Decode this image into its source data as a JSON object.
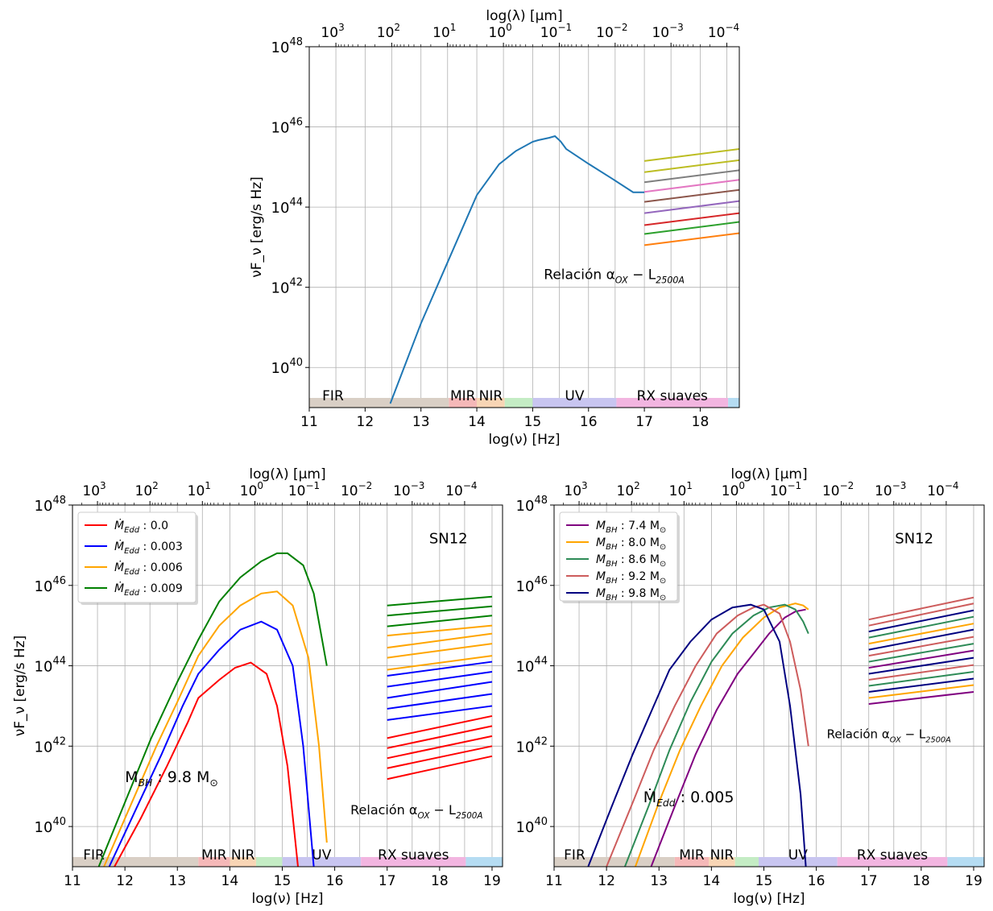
{
  "figure": {
    "background": "#ffffff"
  },
  "chart_data": [
    {
      "id": "top",
      "type": "line",
      "title": "",
      "xlabel": "log(ν) [Hz]",
      "ylabel": "νF_ν [erg/s Hz]",
      "top_xlabel": "log(λ) [μm]",
      "xlim": [
        11,
        18.7
      ],
      "ylim_log10": [
        39,
        48
      ],
      "xticks": [
        11,
        12,
        13,
        14,
        15,
        16,
        17,
        18
      ],
      "yticks_log10": [
        40,
        42,
        44,
        46,
        48
      ],
      "top_ticks_log_um": [
        3,
        2,
        1,
        0,
        -1,
        -2,
        -3,
        -4
      ],
      "grid": true,
      "bands": [
        {
          "name": "FIR",
          "from": 11.0,
          "to": 13.5,
          "color": "#d9cfc5",
          "label_color": "#555555"
        },
        {
          "name": "MIR",
          "from": 13.5,
          "to": 14.0,
          "color": "#f5b8b8",
          "label_color": "#e02424"
        },
        {
          "name": "NIR",
          "from": 14.0,
          "to": 14.5,
          "color": "#f8d5b5",
          "label_color": "#f07f1c"
        },
        {
          "name": "",
          "from": 14.5,
          "to": 15.0,
          "color": "#c4ecc4",
          "label_color": "#000000"
        },
        {
          "name": "UV",
          "from": 15.0,
          "to": 16.5,
          "color": "#c8c5f0",
          "label_color": "#7b68ee"
        },
        {
          "name": "RX suaves",
          "from": 16.5,
          "to": 18.5,
          "color": "#f2b5e0",
          "label_color": "#c242b0"
        },
        {
          "name": "",
          "from": 18.5,
          "to": 19.3,
          "color": "#b5dcf2",
          "label_color": "#000000"
        }
      ],
      "annotations": [
        {
          "text": "Relación α",
          "sub": "OX",
          "text2": " − L",
          "sub2": "2500A",
          "x": 15.2,
          "y_log": 42.2,
          "size": 17
        }
      ],
      "series": [
        {
          "color": "#1f77b4",
          "x": [
            12.45,
            13.0,
            13.5,
            14.0,
            14.4,
            14.7,
            15.0,
            15.1,
            15.2,
            15.3,
            15.4,
            15.5,
            15.6,
            16.0,
            16.4,
            16.8,
            17.0
          ],
          "y_log": [
            39.1,
            41.1,
            42.7,
            44.3,
            45.07,
            45.4,
            45.63,
            45.67,
            45.7,
            45.73,
            45.77,
            45.64,
            45.45,
            45.08,
            44.73,
            44.37,
            44.37
          ]
        }
      ],
      "xray_lines": {
        "x0": 17.0,
        "x1": 18.7,
        "y0_log": [
          43.05,
          43.33,
          43.55,
          43.85,
          44.13,
          44.38,
          44.62,
          44.87,
          45.15
        ],
        "y1_log": [
          43.35,
          43.63,
          43.85,
          44.15,
          44.43,
          44.68,
          44.92,
          45.17,
          45.45
        ],
        "colors": [
          "#ff7f0e",
          "#2ca02c",
          "#d62728",
          "#9467bd",
          "#8c564b",
          "#e377c2",
          "#7f7f7f",
          "#bcbd22",
          "#bcbd22"
        ]
      }
    },
    {
      "id": "bottom-left",
      "type": "line",
      "title": "",
      "xlabel": "log(ν) [Hz]",
      "ylabel": "νF_ν [erg/s Hz]",
      "top_xlabel": "log(λ) [μm]",
      "xlim": [
        11,
        19.2
      ],
      "ylim_log10": [
        39,
        48
      ],
      "xticks": [
        11,
        12,
        13,
        14,
        15,
        16,
        17,
        18,
        19
      ],
      "yticks_log10": [
        40,
        42,
        44,
        46,
        48
      ],
      "top_ticks_log_um": [
        3,
        2,
        1,
        0,
        -1,
        -2,
        -3,
        -4
      ],
      "grid": true,
      "legend": {
        "placement": "upper-left",
        "entries": [
          {
            "label": "Ṁ",
            "sub": "Edd",
            "value": " : 0.0",
            "color": "#ff0000"
          },
          {
            "label": "Ṁ",
            "sub": "Edd",
            "value": " : 0.003",
            "color": "#0000ff"
          },
          {
            "label": "Ṁ",
            "sub": "Edd",
            "value": " : 0.006",
            "color": "#ffa500"
          },
          {
            "label": "Ṁ",
            "sub": "Edd",
            "value": " : 0.009",
            "color": "#008000"
          }
        ]
      },
      "annotations": [
        {
          "text": "SN12",
          "x": 17.8,
          "y_log": 47.05,
          "size": 18
        },
        {
          "text": "M",
          "sub": "BH",
          "text2": " : 9.8 M",
          "sub2": "⊙",
          "x": 12.0,
          "y_log": 41.1,
          "size": 19
        },
        {
          "text": "Relación α",
          "sub": "OX",
          "text2": " − L",
          "sub2": "2500A",
          "x": 16.3,
          "y_log": 40.3,
          "size": 16
        }
      ],
      "bands": [
        {
          "name": "FIR",
          "from": 11.0,
          "to": 13.4,
          "color": "#d9cfc5",
          "label_color": "#555555"
        },
        {
          "name": "MIR",
          "from": 13.4,
          "to": 14.0,
          "color": "#f5b8b8",
          "label_color": "#e02424"
        },
        {
          "name": "NIR",
          "from": 14.0,
          "to": 14.5,
          "color": "#f8d5b5",
          "label_color": "#f07f1c"
        },
        {
          "name": "",
          "from": 14.5,
          "to": 15.0,
          "color": "#c4ecc4",
          "label_color": "#000000"
        },
        {
          "name": "UV",
          "from": 15.0,
          "to": 16.5,
          "color": "#c8c5f0",
          "label_color": "#7b68ee"
        },
        {
          "name": "RX suaves",
          "from": 16.5,
          "to": 18.5,
          "color": "#f2b5e0",
          "label_color": "#c242b0"
        },
        {
          "name": "",
          "from": 18.5,
          "to": 19.3,
          "color": "#b5dcf2",
          "label_color": "#000000"
        }
      ],
      "series": [
        {
          "color": "#ff0000",
          "x": [
            11.8,
            12.3,
            12.8,
            13.2,
            13.4,
            13.8,
            14.1,
            14.4,
            14.7,
            14.9,
            15.1,
            15.3
          ],
          "y_log": [
            39.0,
            40.2,
            41.5,
            42.6,
            43.2,
            43.65,
            43.95,
            44.08,
            43.8,
            43.0,
            41.5,
            39.0
          ]
        },
        {
          "color": "#0000ff",
          "x": [
            11.7,
            12.2,
            12.7,
            13.1,
            13.4,
            13.8,
            14.2,
            14.6,
            14.9,
            15.2,
            15.4,
            15.6
          ],
          "y_log": [
            39.0,
            40.4,
            41.8,
            43.0,
            43.8,
            44.4,
            44.9,
            45.1,
            44.9,
            44.0,
            42.0,
            39.0
          ]
        },
        {
          "color": "#ffa500",
          "x": [
            11.6,
            12.1,
            12.6,
            13.0,
            13.4,
            13.8,
            14.2,
            14.6,
            14.9,
            15.2,
            15.5,
            15.7,
            15.85
          ],
          "y_log": [
            39.0,
            40.5,
            42.0,
            43.1,
            44.25,
            45.0,
            45.5,
            45.8,
            45.85,
            45.5,
            44.2,
            42.0,
            39.6
          ]
        },
        {
          "color": "#008000",
          "x": [
            11.5,
            12.0,
            12.5,
            13.0,
            13.4,
            13.8,
            14.2,
            14.6,
            14.9,
            15.1,
            15.4,
            15.6,
            15.85
          ],
          "y_log": [
            39.0,
            40.6,
            42.2,
            43.6,
            44.65,
            45.6,
            46.2,
            46.6,
            46.8,
            46.8,
            46.5,
            45.8,
            44.0
          ]
        }
      ],
      "xray_lines": {
        "x0": 17.0,
        "x1": 19.0,
        "y0_log": [
          41.18,
          41.45,
          41.7,
          41.95,
          42.2,
          42.65,
          42.93,
          43.2,
          43.48,
          43.75,
          43.9,
          44.2,
          44.45,
          44.75,
          44.98,
          45.25,
          45.5
        ],
        "y1_log": [
          41.75,
          42.0,
          42.25,
          42.5,
          42.75,
          43.0,
          43.3,
          43.6,
          43.85,
          44.1,
          44.25,
          44.55,
          44.8,
          45.0,
          45.25,
          45.48,
          45.72
        ],
        "colors": [
          "#ff0000",
          "#ff0000",
          "#ff0000",
          "#ff0000",
          "#ff0000",
          "#0000ff",
          "#0000ff",
          "#0000ff",
          "#0000ff",
          "#0000ff",
          "#ffa500",
          "#ffa500",
          "#ffa500",
          "#ffa500",
          "#008000",
          "#008000",
          "#008000"
        ]
      }
    },
    {
      "id": "bottom-right",
      "type": "line",
      "title": "",
      "xlabel": "log(ν) [Hz]",
      "ylabel": "",
      "top_xlabel": "log(λ) [μm]",
      "xlim": [
        11,
        19.2
      ],
      "ylim_log10": [
        39,
        48
      ],
      "xticks": [
        11,
        12,
        13,
        14,
        15,
        16,
        17,
        18,
        19
      ],
      "yticks_log10": [
        40,
        42,
        44,
        46,
        48
      ],
      "top_ticks_log_um": [
        3,
        2,
        1,
        0,
        -1,
        -2,
        -3,
        -4
      ],
      "grid": true,
      "legend": {
        "placement": "upper-left",
        "entries": [
          {
            "label": "M",
            "sub": "BH",
            "value": " : 7.4 M",
            "value_sub": "⊙",
            "color": "#800080"
          },
          {
            "label": "M",
            "sub": "BH",
            "value": " : 8.0 M",
            "value_sub": "⊙",
            "color": "#ffa500"
          },
          {
            "label": "M",
            "sub": "BH",
            "value": " : 8.6 M",
            "value_sub": "⊙",
            "color": "#2e8b57"
          },
          {
            "label": "M",
            "sub": "BH",
            "value": " : 9.2 M",
            "value_sub": "⊙",
            "color": "#cd5c5c"
          },
          {
            "label": "M",
            "sub": "BH",
            "value": " : 9.8 M",
            "value_sub": "⊙",
            "color": "#000080"
          }
        ]
      },
      "annotations": [
        {
          "text": "SN12",
          "x": 17.5,
          "y_log": 47.05,
          "size": 18
        },
        {
          "text": "Relación α",
          "sub": "OX",
          "text2": " − L",
          "sub2": "2500A",
          "x": 16.2,
          "y_log": 42.2,
          "size": 15
        },
        {
          "text": "Ṁ",
          "sub": "Edd",
          "text2": " : 0.005",
          "sub2": "",
          "x": 12.7,
          "y_log": 40.6,
          "size": 19
        }
      ],
      "bands": [
        {
          "name": "FIR",
          "from": 11.0,
          "to": 13.3,
          "color": "#d9cfc5",
          "label_color": "#555555"
        },
        {
          "name": "MIR",
          "from": 13.3,
          "to": 13.95,
          "color": "#f5b8b8",
          "label_color": "#e02424"
        },
        {
          "name": "NIR",
          "from": 13.95,
          "to": 14.45,
          "color": "#f8d5b5",
          "label_color": "#f07f1c"
        },
        {
          "name": "",
          "from": 14.45,
          "to": 14.9,
          "color": "#c4ecc4",
          "label_color": "#000000"
        },
        {
          "name": "UV",
          "from": 14.9,
          "to": 16.4,
          "color": "#c8c5f0",
          "label_color": "#7b68ee"
        },
        {
          "name": "RX suaves",
          "from": 16.4,
          "to": 18.5,
          "color": "#f2b5e0",
          "label_color": "#c242b0"
        },
        {
          "name": "",
          "from": 18.5,
          "to": 19.3,
          "color": "#b5dcf2",
          "label_color": "#000000"
        }
      ],
      "series": [
        {
          "color": "#800080",
          "x": [
            12.85,
            13.3,
            13.7,
            14.1,
            14.5,
            14.8,
            15.1,
            15.4,
            15.6,
            15.8
          ],
          "y_log": [
            39.0,
            40.5,
            41.8,
            42.9,
            43.8,
            44.3,
            44.8,
            45.2,
            45.35,
            45.4
          ]
        },
        {
          "color": "#ffa500",
          "x": [
            12.55,
            13.0,
            13.4,
            13.8,
            14.2,
            14.6,
            15.0,
            15.3,
            15.6,
            15.75,
            15.85
          ],
          "y_log": [
            39.0,
            40.6,
            41.9,
            43.0,
            44.0,
            44.7,
            45.2,
            45.45,
            45.55,
            45.5,
            45.4
          ]
        },
        {
          "color": "#2e8b57",
          "x": [
            12.35,
            12.8,
            13.2,
            13.6,
            14.0,
            14.4,
            14.8,
            15.1,
            15.4,
            15.6,
            15.75,
            15.85
          ],
          "y_log": [
            39.0,
            40.5,
            41.9,
            43.1,
            44.1,
            44.8,
            45.25,
            45.45,
            45.52,
            45.4,
            45.1,
            44.8
          ]
        },
        {
          "color": "#cd5c5c",
          "x": [
            12.0,
            12.5,
            12.9,
            13.3,
            13.7,
            14.1,
            14.5,
            14.8,
            15.0,
            15.3,
            15.5,
            15.7,
            15.85
          ],
          "y_log": [
            39.0,
            40.6,
            41.9,
            43.0,
            44.0,
            44.8,
            45.25,
            45.45,
            45.52,
            45.3,
            44.6,
            43.4,
            42.0
          ]
        },
        {
          "color": "#000080",
          "x": [
            11.65,
            12.1,
            12.5,
            12.9,
            13.2,
            13.6,
            14.0,
            14.4,
            14.75,
            15.0,
            15.3,
            15.5,
            15.7,
            15.8
          ],
          "y_log": [
            39.0,
            40.5,
            41.8,
            43.0,
            43.9,
            44.6,
            45.15,
            45.45,
            45.52,
            45.4,
            44.6,
            43.0,
            40.8,
            39.0
          ]
        }
      ],
      "xray_lines": {
        "x0": 17.0,
        "x1": 19.0,
        "y0_log": [
          43.05,
          43.2,
          43.35,
          43.5,
          43.65,
          43.8,
          43.95,
          44.1,
          44.25,
          44.4,
          44.55,
          44.7,
          44.85,
          45.0,
          45.15
        ],
        "y1_log": [
          43.35,
          43.52,
          43.68,
          43.85,
          44.02,
          44.2,
          44.38,
          44.55,
          44.72,
          44.9,
          45.05,
          45.22,
          45.38,
          45.55,
          45.7
        ],
        "colors": [
          "#800080",
          "#ffa500",
          "#000080",
          "#2e8b57",
          "#cd5c5c",
          "#000080",
          "#800080",
          "#2e8b57",
          "#cd5c5c",
          "#000080",
          "#ffa500",
          "#2e8b57",
          "#000080",
          "#cd5c5c",
          "#cd5c5c"
        ]
      }
    }
  ]
}
